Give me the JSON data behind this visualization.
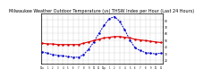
{
  "title": "Milwaukee Weather Outdoor Temperature (vs) THSW Index per Hour (Last 24 Hours)",
  "title_fontsize": 3.5,
  "background_color": "#ffffff",
  "grid_color": "#888888",
  "hours": [
    0,
    1,
    2,
    3,
    4,
    5,
    6,
    7,
    8,
    9,
    10,
    11,
    12,
    13,
    14,
    15,
    16,
    17,
    18,
    19,
    20,
    21,
    22,
    23
  ],
  "outdoor_temp": [
    45,
    44,
    44,
    43,
    43,
    43,
    43,
    43,
    45,
    47,
    49,
    51,
    53,
    54,
    55,
    55,
    54,
    53,
    51,
    50,
    49,
    48,
    47,
    46
  ],
  "thsw_index": [
    32,
    30,
    28,
    27,
    26,
    25,
    24,
    24,
    28,
    36,
    47,
    60,
    72,
    82,
    85,
    78,
    65,
    50,
    38,
    34,
    31,
    30,
    29,
    30
  ],
  "temp_color": "#dd0000",
  "thsw_color": "#0000cc",
  "ylim_min": 15,
  "ylim_max": 90,
  "yticks": [
    20,
    30,
    40,
    50,
    60,
    70,
    80
  ],
  "ytick_labels": [
    "20",
    "30",
    "40",
    "50",
    "60",
    "70",
    "80"
  ],
  "xtick_labels": [
    "12a",
    "1",
    "2",
    "3",
    "4",
    "5",
    "6",
    "7",
    "8",
    "9",
    "10",
    "11",
    "12p",
    "1",
    "2",
    "3",
    "4",
    "5",
    "6",
    "7",
    "8",
    "9",
    "10",
    "11"
  ]
}
